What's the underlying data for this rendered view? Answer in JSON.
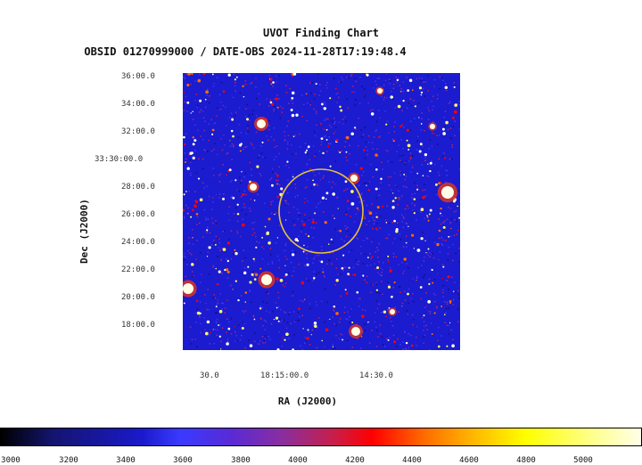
{
  "title": "UVOT Finding Chart",
  "subtitle": "OBSID 01270999000 / DATE-OBS 2024-11-28T17:19:48.4",
  "axes": {
    "y_title": "Dec (J2000)",
    "x_title": "RA (J2000)",
    "dec_ticks": [
      "36:00.0",
      "34:00.0",
      "32:00.0",
      "33:30:00.0",
      "28:00.0",
      "26:00.0",
      "24:00.0",
      "22:00.0",
      "20:00.0",
      "18:00.0"
    ],
    "ra_ticks": [
      "30.0",
      "18:15:00.0",
      "14:30.0"
    ]
  },
  "colorbar": {
    "ticks": [
      "3000",
      "3200",
      "3400",
      "3600",
      "3800",
      "4000",
      "4200",
      "4400",
      "4600",
      "4800",
      "5000"
    ],
    "colors": {
      "low": "#000000",
      "mid": "#ff0000",
      "high": "#ffffe8"
    }
  },
  "image": {
    "background_color": "#1b1bd0",
    "circle_color": "#e5c23a"
  }
}
